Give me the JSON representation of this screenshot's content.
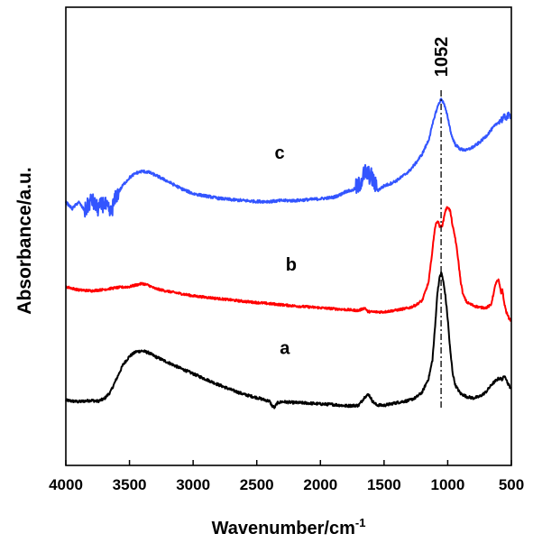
{
  "chart_data": {
    "type": "line",
    "xlabel": "Wavenumber/cm",
    "xlabel_sup": "-1",
    "ylabel": "Absorbance/a.u.",
    "xlim": [
      4000,
      500
    ],
    "ylim": [
      0,
      1
    ],
    "x_reversed": true,
    "y_ticks_shown": false,
    "grid": false,
    "legend": "none",
    "x_ticks": [
      {
        "value": 4000,
        "label": "4000"
      },
      {
        "value": 3500,
        "label": "3500"
      },
      {
        "value": 3000,
        "label": "3000"
      },
      {
        "value": 2500,
        "label": "2500"
      },
      {
        "value": 2000,
        "label": "2000"
      },
      {
        "value": 1500,
        "label": "1500"
      },
      {
        "value": 1000,
        "label": "1000"
      },
      {
        "value": 500,
        "label": "500"
      }
    ],
    "annotations": [
      {
        "text": "1052",
        "x": 1052,
        "type": "dash-dot vertical line"
      }
    ],
    "series": [
      {
        "name": "a",
        "color": "#000000",
        "label_x": 2280,
        "label_y": 0.243,
        "noise": 0.003,
        "points": [
          [
            4000,
            0.142
          ],
          [
            3900,
            0.139
          ],
          [
            3800,
            0.142
          ],
          [
            3750,
            0.14
          ],
          [
            3700,
            0.145
          ],
          [
            3650,
            0.16
          ],
          [
            3600,
            0.19
          ],
          [
            3550,
            0.22
          ],
          [
            3500,
            0.238
          ],
          [
            3450,
            0.248
          ],
          [
            3400,
            0.25
          ],
          [
            3350,
            0.246
          ],
          [
            3300,
            0.238
          ],
          [
            3200,
            0.225
          ],
          [
            3100,
            0.212
          ],
          [
            3000,
            0.2
          ],
          [
            2900,
            0.188
          ],
          [
            2800,
            0.176
          ],
          [
            2700,
            0.165
          ],
          [
            2600,
            0.155
          ],
          [
            2500,
            0.148
          ],
          [
            2400,
            0.14
          ],
          [
            2380,
            0.13
          ],
          [
            2360,
            0.126
          ],
          [
            2340,
            0.136
          ],
          [
            2300,
            0.139
          ],
          [
            2250,
            0.138
          ],
          [
            2200,
            0.137
          ],
          [
            2100,
            0.136
          ],
          [
            2000,
            0.134
          ],
          [
            1900,
            0.133
          ],
          [
            1800,
            0.13
          ],
          [
            1700,
            0.131
          ],
          [
            1650,
            0.15
          ],
          [
            1620,
            0.155
          ],
          [
            1590,
            0.14
          ],
          [
            1560,
            0.132
          ],
          [
            1500,
            0.131
          ],
          [
            1450,
            0.134
          ],
          [
            1400,
            0.137
          ],
          [
            1300,
            0.142
          ],
          [
            1250,
            0.148
          ],
          [
            1200,
            0.16
          ],
          [
            1150,
            0.19
          ],
          [
            1120,
            0.23
          ],
          [
            1100,
            0.3
          ],
          [
            1080,
            0.38
          ],
          [
            1060,
            0.415
          ],
          [
            1050,
            0.42
          ],
          [
            1040,
            0.41
          ],
          [
            1020,
            0.375
          ],
          [
            1000,
            0.32
          ],
          [
            980,
            0.25
          ],
          [
            960,
            0.2
          ],
          [
            940,
            0.175
          ],
          [
            900,
            0.157
          ],
          [
            850,
            0.15
          ],
          [
            800,
            0.147
          ],
          [
            750,
            0.15
          ],
          [
            700,
            0.16
          ],
          [
            650,
            0.178
          ],
          [
            600,
            0.19
          ],
          [
            570,
            0.188
          ],
          [
            550,
            0.197
          ],
          [
            530,
            0.18
          ],
          [
            510,
            0.171
          ],
          [
            500,
            0.168
          ]
        ]
      },
      {
        "name": "b",
        "color": "#ff0000",
        "label_x": 2230,
        "label_y": 0.425,
        "noise": 0.0025,
        "points": [
          [
            4000,
            0.39
          ],
          [
            3900,
            0.383
          ],
          [
            3800,
            0.381
          ],
          [
            3700,
            0.384
          ],
          [
            3600,
            0.388
          ],
          [
            3500,
            0.39
          ],
          [
            3400,
            0.397
          ],
          [
            3350,
            0.393
          ],
          [
            3300,
            0.386
          ],
          [
            3200,
            0.38
          ],
          [
            3100,
            0.375
          ],
          [
            3000,
            0.37
          ],
          [
            2800,
            0.364
          ],
          [
            2600,
            0.358
          ],
          [
            2400,
            0.353
          ],
          [
            2200,
            0.348
          ],
          [
            2000,
            0.344
          ],
          [
            1800,
            0.34
          ],
          [
            1700,
            0.338
          ],
          [
            1650,
            0.344
          ],
          [
            1630,
            0.336
          ],
          [
            1600,
            0.335
          ],
          [
            1500,
            0.335
          ],
          [
            1400,
            0.339
          ],
          [
            1300,
            0.344
          ],
          [
            1250,
            0.35
          ],
          [
            1200,
            0.36
          ],
          [
            1150,
            0.4
          ],
          [
            1120,
            0.47
          ],
          [
            1100,
            0.52
          ],
          [
            1080,
            0.535
          ],
          [
            1060,
            0.52
          ],
          [
            1040,
            0.525
          ],
          [
            1020,
            0.555
          ],
          [
            1000,
            0.565
          ],
          [
            980,
            0.555
          ],
          [
            960,
            0.52
          ],
          [
            940,
            0.495
          ],
          [
            920,
            0.455
          ],
          [
            900,
            0.405
          ],
          [
            880,
            0.373
          ],
          [
            850,
            0.356
          ],
          [
            800,
            0.349
          ],
          [
            750,
            0.345
          ],
          [
            700,
            0.344
          ],
          [
            660,
            0.35
          ],
          [
            640,
            0.375
          ],
          [
            620,
            0.4
          ],
          [
            600,
            0.404
          ],
          [
            580,
            0.375
          ],
          [
            570,
            0.385
          ],
          [
            560,
            0.36
          ],
          [
            540,
            0.335
          ],
          [
            520,
            0.322
          ],
          [
            500,
            0.315
          ]
        ]
      },
      {
        "name": "c",
        "color": "#3355ff",
        "label_x": 2320,
        "label_y": 0.669,
        "noise": 0.003,
        "points": [
          [
            4000,
            0.575
          ],
          [
            3950,
            0.56
          ],
          [
            3900,
            0.575
          ],
          [
            3850,
            0.555
          ],
          [
            3800,
            0.58
          ],
          [
            3750,
            0.56
          ],
          [
            3700,
            0.572
          ],
          [
            3650,
            0.55
          ],
          [
            3600,
            0.59
          ],
          [
            3550,
            0.612
          ],
          [
            3500,
            0.628
          ],
          [
            3450,
            0.638
          ],
          [
            3400,
            0.642
          ],
          [
            3350,
            0.64
          ],
          [
            3300,
            0.634
          ],
          [
            3200,
            0.62
          ],
          [
            3100,
            0.605
          ],
          [
            3000,
            0.593
          ],
          [
            2900,
            0.588
          ],
          [
            2800,
            0.583
          ],
          [
            2700,
            0.58
          ],
          [
            2600,
            0.578
          ],
          [
            2500,
            0.576
          ],
          [
            2400,
            0.576
          ],
          [
            2300,
            0.578
          ],
          [
            2200,
            0.578
          ],
          [
            2100,
            0.58
          ],
          [
            2000,
            0.582
          ],
          [
            1900,
            0.585
          ],
          [
            1850,
            0.59
          ],
          [
            1800,
            0.598
          ],
          [
            1750,
            0.6
          ],
          [
            1700,
            0.61
          ],
          [
            1650,
            0.64
          ],
          [
            1600,
            0.63
          ],
          [
            1550,
            0.6
          ],
          [
            1500,
            0.61
          ],
          [
            1450,
            0.615
          ],
          [
            1400,
            0.622
          ],
          [
            1350,
            0.632
          ],
          [
            1300,
            0.643
          ],
          [
            1250,
            0.66
          ],
          [
            1200,
            0.68
          ],
          [
            1150,
            0.71
          ],
          [
            1100,
            0.765
          ],
          [
            1070,
            0.79
          ],
          [
            1050,
            0.8
          ],
          [
            1030,
            0.79
          ],
          [
            1000,
            0.76
          ],
          [
            970,
            0.72
          ],
          [
            940,
            0.7
          ],
          [
            900,
            0.69
          ],
          [
            850,
            0.688
          ],
          [
            800,
            0.695
          ],
          [
            750,
            0.705
          ],
          [
            700,
            0.718
          ],
          [
            650,
            0.735
          ],
          [
            600,
            0.75
          ],
          [
            550,
            0.76
          ],
          [
            500,
            0.765
          ]
        ],
        "noisy_ranges": [
          {
            "from": 3850,
            "to": 3580,
            "amp": 0.018
          },
          {
            "from": 1720,
            "to": 1560,
            "amp": 0.02
          },
          {
            "from": 600,
            "to": 500,
            "amp": 0.008
          }
        ]
      }
    ]
  }
}
